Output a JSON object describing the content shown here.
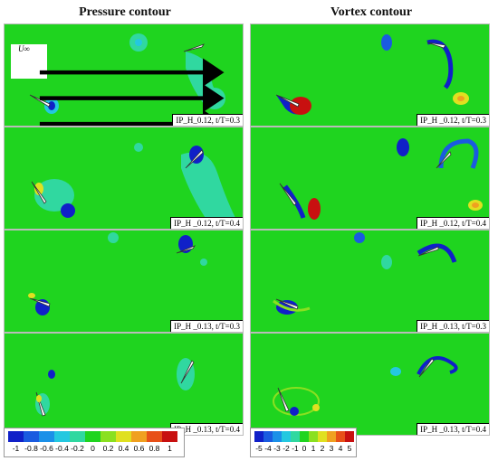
{
  "titles": {
    "pressure": "Pressure contour",
    "vortex": "Vortex contour"
  },
  "freestream_label": "U∞",
  "panel_labels": {
    "p1": "IP_H_0.12, t/T=0.3",
    "p2": "IP_H _0.12, t/T=0.4",
    "p3": "IP_H _0.13, t/T=0.3",
    "p4": "IP_H _0.13, t/T=0.4",
    "v1": "IP_H _0.12, t/T=0.3",
    "v2": "IP_H _0.12, t/T=0.4",
    "v3": "IP_H _0.13, t/T=0.3",
    "v4": "IP_H _0.13, t/T=0.4"
  },
  "pressure_legend": {
    "ticks": [
      "-1",
      "-0.8",
      "-0.6",
      "-0.4",
      "-0.2",
      "0",
      "0.2",
      "0.4",
      "0.6",
      "0.8",
      "1"
    ],
    "colors": [
      "#1020c8",
      "#1a5be0",
      "#1b90e8",
      "#24c8e0",
      "#30d8a0",
      "#1fd41f",
      "#8ae020",
      "#e0e020",
      "#f0a020",
      "#e85018",
      "#c81010"
    ]
  },
  "vortex_legend": {
    "ticks": [
      "-5",
      "-4",
      "-3",
      "-2",
      "-1",
      "0",
      "1",
      "2",
      "3",
      "4",
      "5"
    ],
    "colors": [
      "#1020c8",
      "#1a5be0",
      "#1b90e8",
      "#24c8e0",
      "#30d8a0",
      "#1fd41f",
      "#8ae020",
      "#e0e020",
      "#f0a020",
      "#e85018",
      "#c81010"
    ]
  }
}
